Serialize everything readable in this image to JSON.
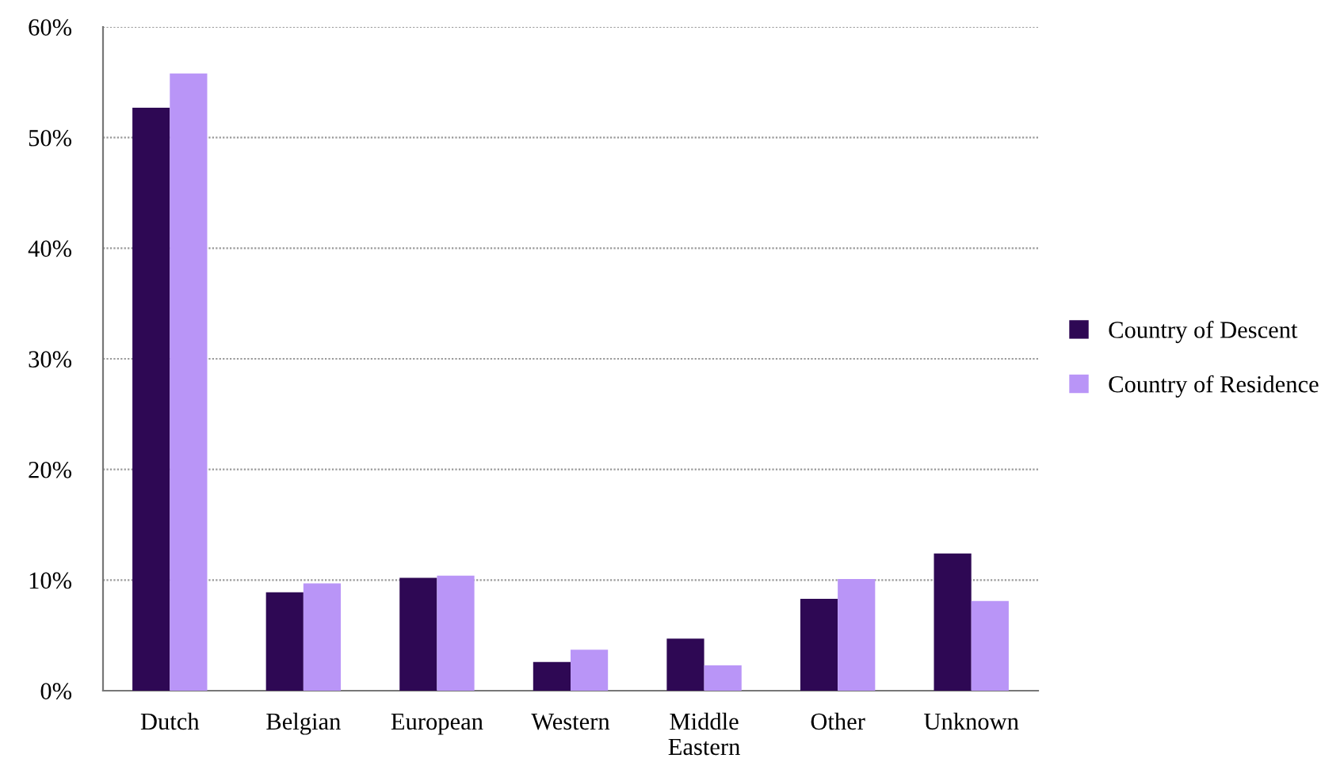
{
  "chart_data": {
    "type": "bar",
    "categories": [
      "Dutch",
      "Belgian",
      "European",
      "Western",
      "Middle\nEastern",
      "Other",
      "Unknown"
    ],
    "series": [
      {
        "name": "Country of Descent",
        "color": "#2e0854",
        "values": [
          52.7,
          8.9,
          10.2,
          2.6,
          4.7,
          8.3,
          12.4
        ]
      },
      {
        "name": "Country of Residence",
        "color": "#b995f7",
        "values": [
          55.8,
          9.7,
          10.4,
          3.7,
          2.3,
          10.1,
          8.1
        ]
      }
    ],
    "ylim": [
      0,
      60
    ],
    "yticks": [
      {
        "value": 0,
        "label": "0%"
      },
      {
        "value": 10,
        "label": "10%"
      },
      {
        "value": 20,
        "label": "20%"
      },
      {
        "value": 30,
        "label": "30%"
      },
      {
        "value": 40,
        "label": "40%"
      },
      {
        "value": 50,
        "label": "50%"
      },
      {
        "value": 60,
        "label": "60%"
      }
    ],
    "grid": "y",
    "legend": "right"
  }
}
